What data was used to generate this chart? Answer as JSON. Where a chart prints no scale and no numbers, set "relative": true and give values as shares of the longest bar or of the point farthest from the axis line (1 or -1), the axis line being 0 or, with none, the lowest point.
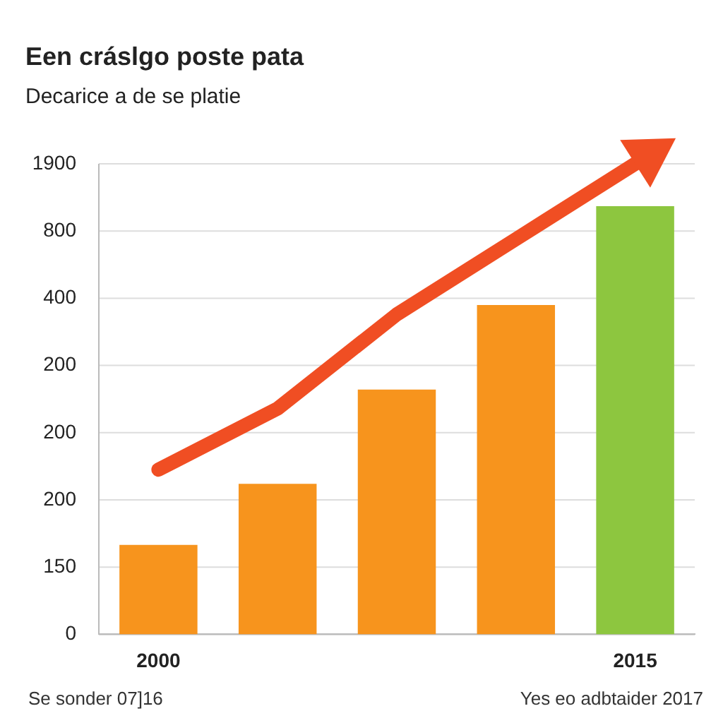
{
  "chart_data": {
    "type": "bar",
    "title": "Een cráslgo poste pata",
    "subtitle": "Decarice a de se platie",
    "categories": [
      "2000",
      null,
      null,
      null,
      "2015"
    ],
    "relative": true,
    "series": [
      {
        "values": [
          0.19,
          0.32,
          0.52,
          0.7,
          0.91
        ],
        "colors": [
          "#f7941d",
          "#f7941d",
          "#f7941d",
          "#f7941d",
          "#8dc63f"
        ]
      },
      {
        "type": "line",
        "values": [
          0.35,
          0.48,
          0.68,
          0.84,
          1
        ],
        "color": "#f04e23"
      }
    ],
    "grid": "y",
    "legend": false,
    "annotations": [
      "Se sonder 07]16",
      "Yes eo adbtaider 2017",
      "0",
      "150",
      "200",
      "200",
      "200",
      "400",
      "800",
      "1900"
    ]
  }
}
